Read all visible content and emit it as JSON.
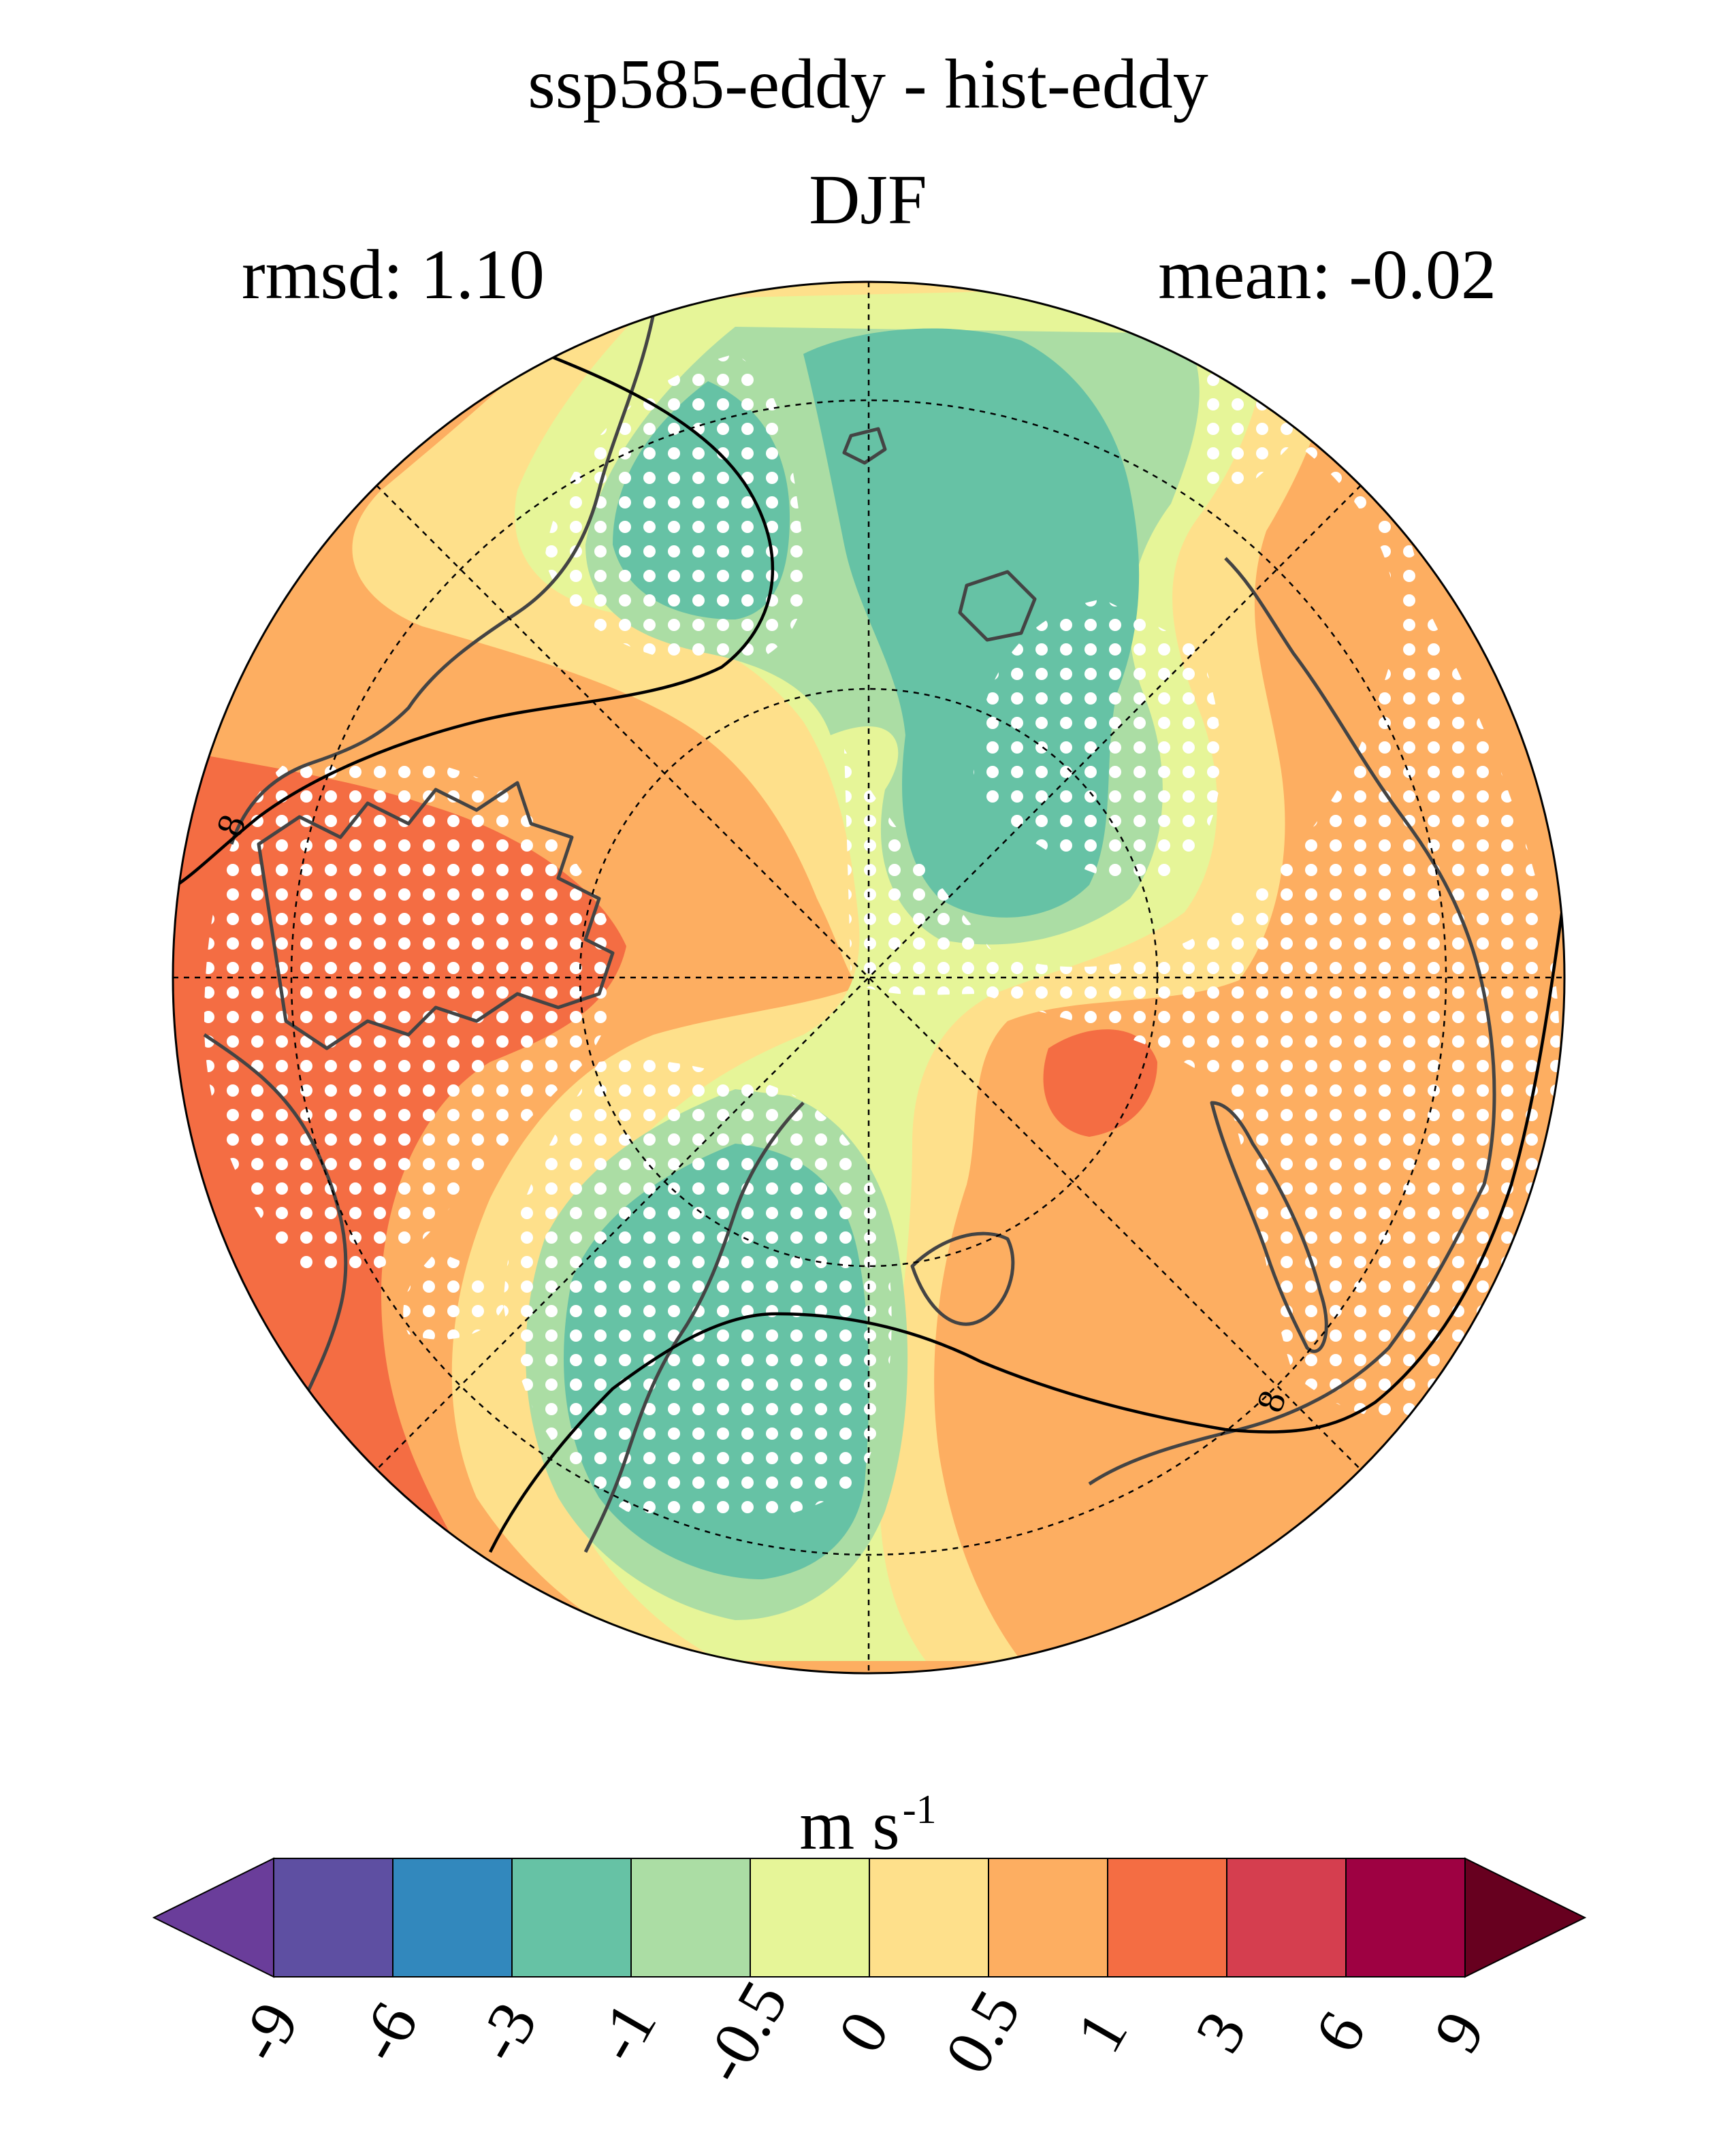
{
  "title": "ssp585-eddy - hist-eddy",
  "season": "DJF",
  "stats": {
    "rmsd": "rmsd: 1.10",
    "mean": "mean: -0.02"
  },
  "contour_label": "8",
  "colorbar": {
    "units": "m s",
    "units_exponent": "-1",
    "ticks": [
      "-9",
      "-6",
      "-3",
      "-1",
      "-0.5",
      "0",
      "0.5",
      "1",
      "3",
      "6",
      "9"
    ],
    "colors": [
      "#5e4fa2",
      "#3288bd",
      "#66c2a5",
      "#abdda4",
      "#e6f598",
      "#fee08b",
      "#fdae61",
      "#f46d43",
      "#d53e4f",
      "#9e0142"
    ],
    "under_color": "#6a3d9a",
    "over_color": "#67001f"
  },
  "colors": {
    "band_orange": "#fdae61",
    "band_red": "#f46d43",
    "band_yellow": "#fee08b",
    "band_lightgreen": "#e6f598",
    "band_green": "#abdda4",
    "band_teal": "#66c2a5",
    "stipple": "#ffffff",
    "coastline": "#444444"
  }
}
